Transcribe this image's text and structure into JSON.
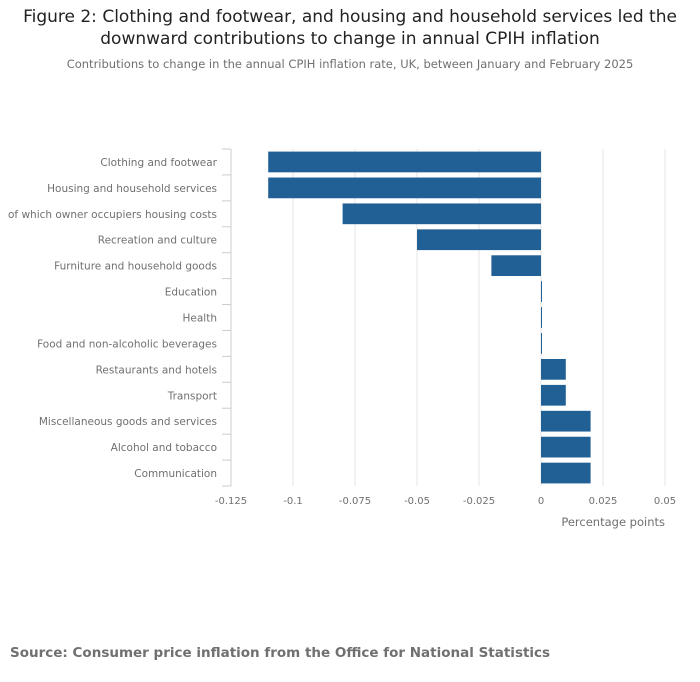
{
  "title": "Figure 2: Clothing and footwear, and housing and household services led the downward contributions to change in annual CPIH inflation",
  "subtitle": "Contributions to change in the annual CPIH inflation rate, UK, between January and February 2025",
  "source": "Source: Consumer price inflation from the Office for National Statistics",
  "colors": {
    "bar": "#206095",
    "grid": "#e5e5e5",
    "axis": "#cccccc",
    "text": "#707070"
  },
  "chart_data": {
    "type": "bar",
    "orientation": "horizontal",
    "title": "Figure 2: Clothing and footwear, and housing and household services led the downward contributions to change in annual CPIH inflation",
    "subtitle": "Contributions to change in the annual CPIH inflation rate, UK, between January and February 2025",
    "xlabel": "Percentage points",
    "ylabel": "",
    "xlim": [
      -0.125,
      0.05
    ],
    "xticks": [
      -0.125,
      -0.1,
      -0.075,
      -0.05,
      -0.025,
      0,
      0.025,
      0.05
    ],
    "xtick_labels": [
      "-0.125",
      "-0.1",
      "-0.075",
      "-0.05",
      "-0.025",
      "0",
      "0.025",
      "0.05"
    ],
    "grid": true,
    "categories": [
      "Clothing and footwear",
      "Housing and household services",
      "of which owner occupiers housing costs",
      "Recreation and culture",
      "Furniture and household goods",
      "Education",
      "Health",
      "Food and non-alcoholic beverages",
      "Restaurants and hotels",
      "Transport",
      "Miscellaneous goods and services",
      "Alcohol and tobacco",
      "Communication"
    ],
    "values": [
      -0.11,
      -0.11,
      -0.08,
      -0.05,
      -0.02,
      0,
      0,
      0,
      0.01,
      0.01,
      0.02,
      0.02,
      0.02
    ]
  }
}
